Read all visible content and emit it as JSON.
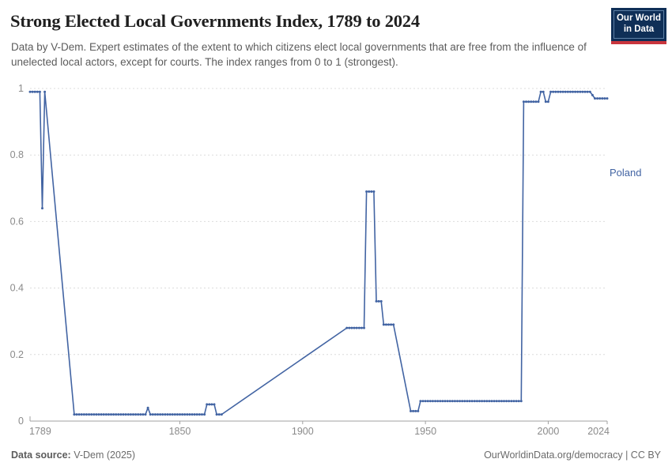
{
  "header": {
    "title": "Strong Elected Local Governments Index, 1789 to 2024",
    "subtitle": "Data by V-Dem. Expert estimates of the extent to which citizens elect local governments that are free from the influence of unelected local actors, except for courts. The index ranges from 0 to 1 (strongest).",
    "logo": {
      "line1": "Our World",
      "line2": "in Data"
    }
  },
  "footer": {
    "source_label": "Data source:",
    "source_value": " V-Dem (2025)",
    "link": "OurWorldinData.org/democracy",
    "separator": " | ",
    "license": "CC BY"
  },
  "colors": {
    "line": "#4264a3",
    "grid": "#dcdcdc",
    "axis": "#a0a0a0",
    "tick_label": "#8a8a8a",
    "title": "#1f1f1f",
    "subtitle": "#5c5c5c",
    "footer": "#6b6b6b",
    "logo_bg": "#0f2f57",
    "logo_border": "#5d7fa5",
    "logo_red": "#c9353d"
  },
  "chart_data": {
    "type": "line",
    "title": "Strong Elected Local Governments Index, 1789 to 2024",
    "xlabel": "",
    "ylabel": "",
    "xlim": [
      1789,
      2024
    ],
    "ylim": [
      0,
      1
    ],
    "x_ticks": [
      1789,
      1850,
      1900,
      1950,
      2000,
      2024
    ],
    "y_ticks": [
      0,
      0.2,
      0.4,
      0.6,
      0.8,
      1
    ],
    "grid": "horizontal-dashed",
    "legend_position": "line-end-label",
    "series": [
      {
        "name": "Poland",
        "color": "#4264a3",
        "note": "segments are [startYear, endYear, value]; every year in a segment is a data point with a marker; years absent between segments are gaps bridged by straight lines",
        "segments": [
          [
            1789,
            1793,
            0.99
          ],
          [
            1794,
            1794,
            0.64
          ],
          [
            1795,
            1795,
            0.99
          ],
          [
            1807,
            1836,
            0.02
          ],
          [
            1837,
            1837,
            0.04
          ],
          [
            1838,
            1860,
            0.02
          ],
          [
            1861,
            1864,
            0.05
          ],
          [
            1865,
            1867,
            0.02
          ],
          [
            1918,
            1925,
            0.28
          ],
          [
            1926,
            1929,
            0.69
          ],
          [
            1930,
            1932,
            0.36
          ],
          [
            1933,
            1937,
            0.29
          ],
          [
            1944,
            1947,
            0.03
          ],
          [
            1948,
            1989,
            0.06
          ],
          [
            1990,
            1996,
            0.96
          ],
          [
            1997,
            1998,
            0.99
          ],
          [
            1999,
            2000,
            0.96
          ],
          [
            2001,
            2017,
            0.99
          ],
          [
            2018,
            2018,
            0.98
          ],
          [
            2019,
            2024,
            0.97
          ]
        ]
      }
    ]
  }
}
